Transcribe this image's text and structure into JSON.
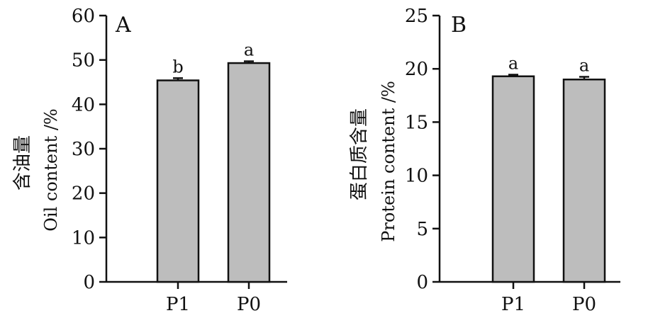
{
  "chart_data": [
    {
      "type": "bar",
      "panel_label": "A",
      "ylabel_cn": "含油量",
      "ylabel_en": "Oil content /%",
      "categories": [
        "P1",
        "P0"
      ],
      "values": [
        45.4,
        49.3
      ],
      "errors": [
        0.5,
        0.4
      ],
      "significance": [
        "b",
        "a"
      ],
      "ylim": [
        0,
        60
      ],
      "yticks": [
        0,
        10,
        20,
        30,
        40,
        50,
        60
      ]
    },
    {
      "type": "bar",
      "panel_label": "B",
      "ylabel_cn": "蛋白质含量",
      "ylabel_en": "Protein content /%",
      "categories": [
        "P1",
        "P0"
      ],
      "values": [
        19.3,
        19.0
      ],
      "errors": [
        0.15,
        0.25
      ],
      "significance": [
        "a",
        "a"
      ],
      "ylim": [
        0,
        25
      ],
      "yticks": [
        0,
        5,
        10,
        15,
        20,
        25
      ]
    }
  ]
}
